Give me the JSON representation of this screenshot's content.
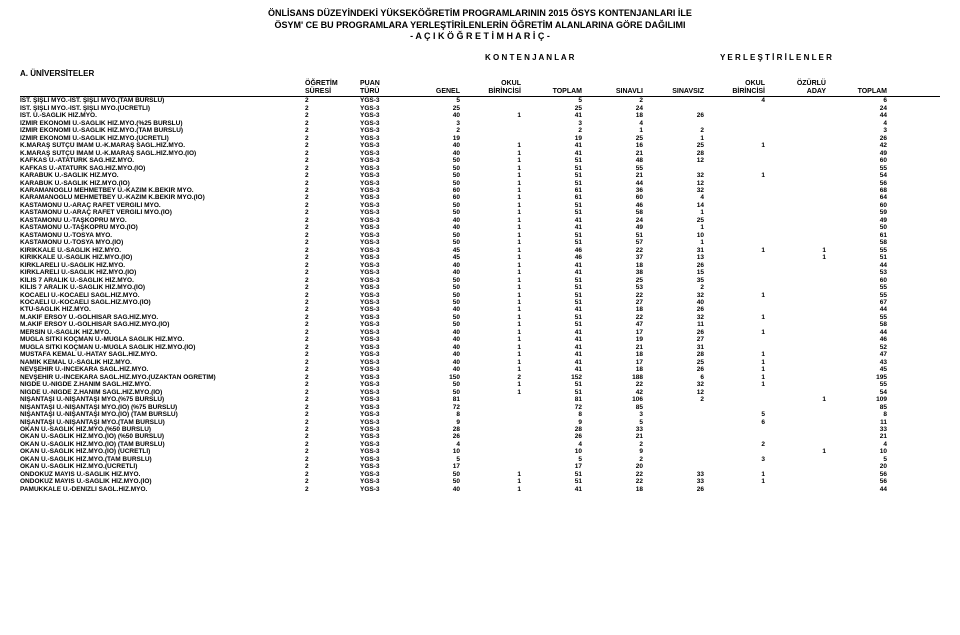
{
  "title": {
    "line1": "ÖNLİSANS DÜZEYİNDEKİ YÜKSEKÖĞRETİM PROGRAMLARININ 2015 ÖSYS KONTENJANLARI İLE",
    "line2": "ÖSYM' CE BU PROGRAMLARA YERLEŞTİRİLENLERİN ÖĞRETİM ALANLARINA GÖRE DAĞILIMI",
    "line3": "- A Ç I K Ö Ğ R E T İ M   H A R İ Ç -"
  },
  "section_label": "A. ÜNİVERSİTELER",
  "super_headers": {
    "kontenjanlar": "K O N T E N J A N L A R",
    "yerlestirilenler": "Y E R L E Ş T İ R İ L E N L E R"
  },
  "header": {
    "row1": [
      "",
      "ÖĞRETİM",
      "PUAN",
      "",
      "OKUL",
      "",
      "",
      "",
      "OKUL",
      "ÖZÜRLÜ",
      ""
    ],
    "row2": [
      "",
      "SÜRESİ",
      "TÜRÜ",
      "GENEL",
      "BİRİNCİSİ",
      "TOPLAM",
      "SINAVLI",
      "SINAVSIZ",
      "BİRİNCİSİ",
      "ADAY",
      "TOPLAM"
    ]
  },
  "rows": [
    {
      "name": "İST. ŞİŞLİ MYO.-İST. ŞİŞLİ MYO.(TAM BURSLU)",
      "sure": "2",
      "puan": "YGS-3",
      "v": [
        "5",
        "",
        "5",
        "2",
        "",
        "4",
        "",
        "6"
      ]
    },
    {
      "name": "İST. ŞİŞLİ MYO.-İST. ŞİŞLİ MYO.(ÜCRETLİ)",
      "sure": "2",
      "puan": "YGS-3",
      "v": [
        "25",
        "",
        "25",
        "24",
        "",
        "",
        "",
        "24"
      ]
    },
    {
      "name": "İST. Ü.-SAĞLIK HİZ.MYO.",
      "sure": "2",
      "puan": "YGS-3",
      "v": [
        "40",
        "1",
        "41",
        "18",
        "26",
        "",
        "",
        "44"
      ]
    },
    {
      "name": "İZMİR EKONOMİ Ü.-SAĞLIK HİZ.MYO.(%25 BURSLU)",
      "sure": "2",
      "puan": "YGS-3",
      "v": [
        "3",
        "",
        "3",
        "4",
        "",
        "",
        "",
        "4"
      ]
    },
    {
      "name": "İZMİR EKONOMİ Ü.-SAĞLIK HİZ.MYO.(TAM BURSLU)",
      "sure": "2",
      "puan": "YGS-3",
      "v": [
        "2",
        "",
        "2",
        "1",
        "2",
        "",
        "",
        "3"
      ]
    },
    {
      "name": "İZMİR EKONOMİ Ü.-SAĞLIK HİZ.MYO.(ÜCRETLİ)",
      "sure": "2",
      "puan": "YGS-3",
      "v": [
        "19",
        "",
        "19",
        "25",
        "1",
        "",
        "",
        "26"
      ]
    },
    {
      "name": "K.MARAŞ SÜTÇÜ İMAM Ü.-K.MARAŞ SAĞL.HİZ.MYO.",
      "sure": "2",
      "puan": "YGS-3",
      "v": [
        "40",
        "1",
        "41",
        "16",
        "25",
        "1",
        "",
        "42"
      ]
    },
    {
      "name": "K.MARAŞ SÜTÇÜ İMAM Ü.-K.MARAŞ SAĞL.HİZ.MYO.(İÖ)",
      "sure": "2",
      "puan": "YGS-3",
      "v": [
        "40",
        "1",
        "41",
        "21",
        "28",
        "",
        "",
        "49"
      ]
    },
    {
      "name": "KAFKAS Ü.-ATATÜRK SAĞ.HİZ.MYO.",
      "sure": "2",
      "puan": "YGS-3",
      "v": [
        "50",
        "1",
        "51",
        "48",
        "12",
        "",
        "",
        "60"
      ]
    },
    {
      "name": "KAFKAS Ü.-ATATÜRK SAĞ.HİZ.MYO.(İÖ)",
      "sure": "2",
      "puan": "YGS-3",
      "v": [
        "50",
        "1",
        "51",
        "55",
        "",
        "",
        "",
        "55"
      ]
    },
    {
      "name": "KARABÜK Ü.-SAĞLIK HİZ.MYO.",
      "sure": "2",
      "puan": "YGS-3",
      "v": [
        "50",
        "1",
        "51",
        "21",
        "32",
        "1",
        "",
        "54"
      ]
    },
    {
      "name": "KARABÜK Ü.-SAĞLIK HİZ.MYO.(İÖ)",
      "sure": "2",
      "puan": "YGS-3",
      "v": [
        "50",
        "1",
        "51",
        "44",
        "12",
        "",
        "",
        "56"
      ]
    },
    {
      "name": "KARAMANOĞLU MEHMETBEY Ü.-KAZIM K.BEKİR MYO.",
      "sure": "2",
      "puan": "YGS-3",
      "v": [
        "60",
        "1",
        "61",
        "36",
        "32",
        "",
        "",
        "68"
      ]
    },
    {
      "name": "KARAMANOĞLU MEHMETBEY Ü.-KAZIM K.BEKİR MYO.(İÖ)",
      "sure": "2",
      "puan": "YGS-3",
      "v": [
        "60",
        "1",
        "61",
        "60",
        "4",
        "",
        "",
        "64"
      ]
    },
    {
      "name": "KASTAMONU Ü.-ARAÇ RAFET VERGİLİ MYO.",
      "sure": "2",
      "puan": "YGS-3",
      "v": [
        "50",
        "1",
        "51",
        "46",
        "14",
        "",
        "",
        "60"
      ]
    },
    {
      "name": "KASTAMONU Ü.-ARAÇ RAFET VERGİLİ MYO.(İÖ)",
      "sure": "2",
      "puan": "YGS-3",
      "v": [
        "50",
        "1",
        "51",
        "58",
        "1",
        "",
        "",
        "59"
      ]
    },
    {
      "name": "KASTAMONU Ü.-TAŞKÖPRÜ MYO.",
      "sure": "2",
      "puan": "YGS-3",
      "v": [
        "40",
        "1",
        "41",
        "24",
        "25",
        "",
        "",
        "49"
      ]
    },
    {
      "name": "KASTAMONU Ü.-TAŞKÖPRÜ MYO.(İÖ)",
      "sure": "2",
      "puan": "YGS-3",
      "v": [
        "40",
        "1",
        "41",
        "49",
        "1",
        "",
        "",
        "50"
      ]
    },
    {
      "name": "KASTAMONU Ü.-TOSYA MYO.",
      "sure": "2",
      "puan": "YGS-3",
      "v": [
        "50",
        "1",
        "51",
        "51",
        "10",
        "",
        "",
        "61"
      ]
    },
    {
      "name": "KASTAMONU Ü.-TOSYA MYO.(İÖ)",
      "sure": "2",
      "puan": "YGS-3",
      "v": [
        "50",
        "1",
        "51",
        "57",
        "1",
        "",
        "",
        "58"
      ]
    },
    {
      "name": "KIRIKKALE Ü.-SAĞLIK HİZ.MYO.",
      "sure": "2",
      "puan": "YGS-3",
      "v": [
        "45",
        "1",
        "46",
        "22",
        "31",
        "1",
        "1",
        "55"
      ]
    },
    {
      "name": "KIRIKKALE Ü.-SAĞLIK HİZ.MYO.(İÖ)",
      "sure": "2",
      "puan": "YGS-3",
      "v": [
        "45",
        "1",
        "46",
        "37",
        "13",
        "",
        "1",
        "51"
      ]
    },
    {
      "name": "KIRKLARELİ Ü.-SAĞLIK HİZ.MYO.",
      "sure": "2",
      "puan": "YGS-3",
      "v": [
        "40",
        "1",
        "41",
        "18",
        "26",
        "",
        "",
        "44"
      ]
    },
    {
      "name": "KIRKLARELİ Ü.-SAĞLIK HİZ.MYO.(İÖ)",
      "sure": "2",
      "puan": "YGS-3",
      "v": [
        "40",
        "1",
        "41",
        "38",
        "15",
        "",
        "",
        "53"
      ]
    },
    {
      "name": "KİLİS 7 ARALIK Ü.-SAĞLIK HİZ.MYO.",
      "sure": "2",
      "puan": "YGS-3",
      "v": [
        "50",
        "1",
        "51",
        "25",
        "35",
        "",
        "",
        "60"
      ]
    },
    {
      "name": "KİLİS 7 ARALIK Ü.-SAĞLIK HİZ.MYO.(İÖ)",
      "sure": "2",
      "puan": "YGS-3",
      "v": [
        "50",
        "1",
        "51",
        "53",
        "2",
        "",
        "",
        "55"
      ]
    },
    {
      "name": "KOCAELİ Ü.-KOCAELİ SAĞL.HİZ.MYO.",
      "sure": "2",
      "puan": "YGS-3",
      "v": [
        "50",
        "1",
        "51",
        "22",
        "32",
        "1",
        "",
        "55"
      ]
    },
    {
      "name": "KOCAELİ Ü.-KOCAELİ SAĞL.HİZ.MYO.(İÖ)",
      "sure": "2",
      "puan": "YGS-3",
      "v": [
        "50",
        "1",
        "51",
        "27",
        "40",
        "",
        "",
        "67"
      ]
    },
    {
      "name": "KTÜ-SAĞLIK HİZ.MYO.",
      "sure": "2",
      "puan": "YGS-3",
      "v": [
        "40",
        "1",
        "41",
        "18",
        "26",
        "",
        "",
        "44"
      ]
    },
    {
      "name": "M.AKİF ERSOY Ü.-GÖLHİSAR SAĞ.HİZ.MYO.",
      "sure": "2",
      "puan": "YGS-3",
      "v": [
        "50",
        "1",
        "51",
        "22",
        "32",
        "1",
        "",
        "55"
      ]
    },
    {
      "name": "M.AKİF ERSOY Ü.-GÖLHİSAR SAĞ.HİZ.MYO.(İÖ)",
      "sure": "2",
      "puan": "YGS-3",
      "v": [
        "50",
        "1",
        "51",
        "47",
        "11",
        "",
        "",
        "58"
      ]
    },
    {
      "name": "MERSİN Ü.-SAĞLIK HİZ.MYO.",
      "sure": "2",
      "puan": "YGS-3",
      "v": [
        "40",
        "1",
        "41",
        "17",
        "26",
        "1",
        "",
        "44"
      ]
    },
    {
      "name": "MUĞLA SITKI KOÇMAN Ü.-MUĞLA SAĞLIK HİZ.MYO.",
      "sure": "2",
      "puan": "YGS-3",
      "v": [
        "40",
        "1",
        "41",
        "19",
        "27",
        "",
        "",
        "46"
      ]
    },
    {
      "name": "MUĞLA SITKI KOÇMAN Ü.-MUĞLA SAĞLIK HİZ.MYO.(İÖ)",
      "sure": "2",
      "puan": "YGS-3",
      "v": [
        "40",
        "1",
        "41",
        "21",
        "31",
        "",
        "",
        "52"
      ]
    },
    {
      "name": "MUSTAFA KEMAL Ü.-HATAY SAĞL.HİZ.MYO.",
      "sure": "2",
      "puan": "YGS-3",
      "v": [
        "40",
        "1",
        "41",
        "18",
        "28",
        "1",
        "",
        "47"
      ]
    },
    {
      "name": "NAMIK KEMAL Ü.-SAĞLIK HİZ.MYO.",
      "sure": "2",
      "puan": "YGS-3",
      "v": [
        "40",
        "1",
        "41",
        "17",
        "25",
        "1",
        "",
        "43"
      ]
    },
    {
      "name": "NEVŞEHİR Ü.-İNCEKARA SAĞL.HİZ.MYO.",
      "sure": "2",
      "puan": "YGS-3",
      "v": [
        "40",
        "1",
        "41",
        "18",
        "26",
        "1",
        "",
        "45"
      ]
    },
    {
      "name": "NEVŞEHİR Ü.-İNCEKARA SAĞL.HİZ.MYO.(UZAKTAN ÖĞRETİM)",
      "sure": "2",
      "puan": "YGS-3",
      "v": [
        "150",
        "2",
        "152",
        "188",
        "6",
        "1",
        "",
        "195"
      ]
    },
    {
      "name": "NİĞDE Ü.-NİĞDE Z.HANIM SAĞL.HİZ.MYO.",
      "sure": "2",
      "puan": "YGS-3",
      "v": [
        "50",
        "1",
        "51",
        "22",
        "32",
        "1",
        "",
        "55"
      ]
    },
    {
      "name": "NİĞDE Ü.-NİĞDE Z.HANIM SAĞL.HİZ.MYO.(İÖ)",
      "sure": "2",
      "puan": "YGS-3",
      "v": [
        "50",
        "1",
        "51",
        "42",
        "12",
        "",
        "",
        "54"
      ]
    },
    {
      "name": "NİŞANTAŞI Ü.-NİŞANTAŞI MYO.(%75 BURSLU)",
      "sure": "2",
      "puan": "YGS-3",
      "v": [
        "81",
        "",
        "81",
        "106",
        "2",
        "",
        "1",
        "109"
      ]
    },
    {
      "name": "NİŞANTAŞI Ü.-NİŞANTAŞI MYO.(İÖ) (%75 BURSLU)",
      "sure": "2",
      "puan": "YGS-3",
      "v": [
        "72",
        "",
        "72",
        "85",
        "",
        "",
        "",
        "85"
      ]
    },
    {
      "name": "NİŞANTAŞI Ü.-NİŞANTAŞI MYO.(İÖ) (TAM BURSLU)",
      "sure": "2",
      "puan": "YGS-3",
      "v": [
        "8",
        "",
        "8",
        "3",
        "",
        "5",
        "",
        "8"
      ]
    },
    {
      "name": "NİŞANTAŞI Ü.-NİŞANTAŞI MYO.(TAM BURSLU)",
      "sure": "2",
      "puan": "YGS-3",
      "v": [
        "9",
        "",
        "9",
        "5",
        "",
        "6",
        "",
        "11"
      ]
    },
    {
      "name": "OKAN Ü.-SAĞLIK HİZ.MYO.(%50 BURSLU)",
      "sure": "2",
      "puan": "YGS-3",
      "v": [
        "28",
        "",
        "28",
        "33",
        "",
        "",
        "",
        "33"
      ]
    },
    {
      "name": "OKAN Ü.-SAĞLIK HİZ.MYO.(İÖ) (%50 BURSLU)",
      "sure": "2",
      "puan": "YGS-3",
      "v": [
        "26",
        "",
        "26",
        "21",
        "",
        "",
        "",
        "21"
      ]
    },
    {
      "name": "OKAN Ü.-SAĞLIK HİZ.MYO.(İÖ) (TAM BURSLU)",
      "sure": "2",
      "puan": "YGS-3",
      "v": [
        "4",
        "",
        "4",
        "2",
        "",
        "2",
        "",
        "4"
      ]
    },
    {
      "name": "OKAN Ü.-SAĞLIK HİZ.MYO.(İÖ) (ÜCRETLİ)",
      "sure": "2",
      "puan": "YGS-3",
      "v": [
        "10",
        "",
        "10",
        "9",
        "",
        "",
        "1",
        "10"
      ]
    },
    {
      "name": "OKAN Ü.-SAĞLIK HİZ.MYO.(TAM BURSLU)",
      "sure": "2",
      "puan": "YGS-3",
      "v": [
        "5",
        "",
        "5",
        "2",
        "",
        "3",
        "",
        "5"
      ]
    },
    {
      "name": "OKAN Ü.-SAĞLIK HİZ.MYO.(ÜCRETLİ)",
      "sure": "2",
      "puan": "YGS-3",
      "v": [
        "17",
        "",
        "17",
        "20",
        "",
        "",
        "",
        "20"
      ]
    },
    {
      "name": "ONDOKUZ MAYIS Ü.-SAĞLIK HİZ.MYO.",
      "sure": "2",
      "puan": "YGS-3",
      "v": [
        "50",
        "1",
        "51",
        "22",
        "33",
        "1",
        "",
        "56"
      ]
    },
    {
      "name": "ONDOKUZ MAYIS Ü.-SAĞLIK HİZ.MYO.(İÖ)",
      "sure": "2",
      "puan": "YGS-3",
      "v": [
        "50",
        "1",
        "51",
        "22",
        "33",
        "1",
        "",
        "56"
      ]
    },
    {
      "name": "PAMUKKALE Ü.-DENİZLİ SAĞL.HİZ.MYO.",
      "sure": "2",
      "puan": "YGS-3",
      "v": [
        "40",
        "1",
        "41",
        "18",
        "26",
        "",
        "",
        "44"
      ]
    }
  ]
}
